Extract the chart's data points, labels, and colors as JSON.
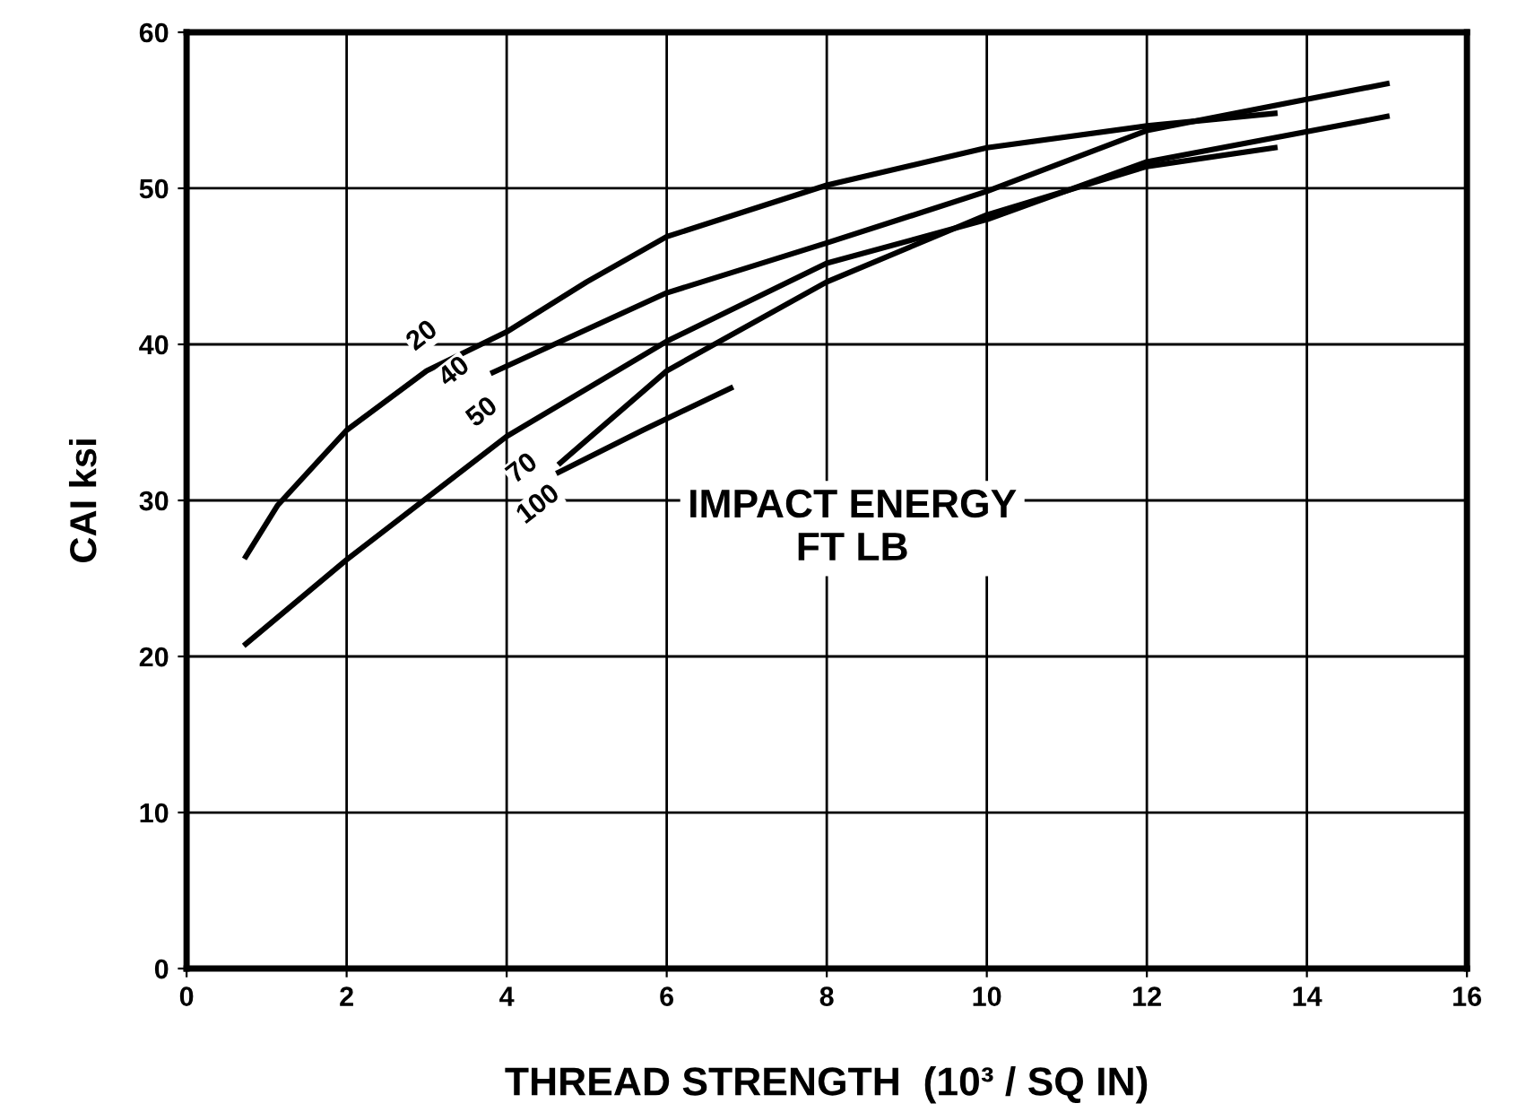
{
  "chart_data": {
    "type": "line",
    "xlabel": "THREAD STRENGTH  (10³ / SQ IN)",
    "ylabel": "CAI ksi",
    "xlim": [
      0,
      16
    ],
    "ylim": [
      0,
      60
    ],
    "xticks": [
      0,
      2,
      4,
      6,
      8,
      10,
      12,
      14,
      16
    ],
    "yticks": [
      0,
      10,
      20,
      30,
      40,
      50,
      60
    ],
    "grid": true,
    "marker": "none",
    "line_style": "solid",
    "series": [
      {
        "color": "#000000",
        "x": [
          0.74,
          1.14,
          2,
          3,
          4,
          5,
          6,
          8,
          10,
          12,
          13.6
        ],
        "values": [
          26.4,
          29.7,
          34.5,
          38.3,
          40.8,
          44,
          46.9,
          50.2,
          52.6,
          54,
          54.8
        ]
      },
      {
        "color": "#000000",
        "x": [
          3.83,
          6,
          8,
          10,
          12,
          15
        ],
        "values": [
          38.2,
          43.3,
          46.5,
          49.8,
          53.7,
          56.7
        ]
      },
      {
        "color": "#000000",
        "x": [
          0.74,
          2,
          4,
          6,
          8,
          10,
          12,
          15
        ],
        "values": [
          20.8,
          26.2,
          34.1,
          40.2,
          45.2,
          48,
          51.7,
          54.6
        ]
      },
      {
        "color": "#000000",
        "x": [
          4.67,
          6,
          8,
          10,
          12,
          13.6
        ],
        "values": [
          32.4,
          38.3,
          44,
          48.3,
          51.4,
          52.6
        ]
      },
      {
        "color": "#000000",
        "x": [
          4.65,
          5.7,
          6.8
        ],
        "values": [
          31.8,
          34.5,
          37.2
        ]
      }
    ],
    "annotations": [
      {
        "text": "20",
        "x": 2.95,
        "y": 40.5
      },
      {
        "text": "40",
        "x": 3.35,
        "y": 38.2
      },
      {
        "text": "50",
        "x": 3.7,
        "y": 35.6
      },
      {
        "text": "70",
        "x": 4.2,
        "y": 32
      },
      {
        "text": "100",
        "x": 4.4,
        "y": 29.7
      },
      "IMPACT ENERGY\nFT LB"
    ]
  }
}
